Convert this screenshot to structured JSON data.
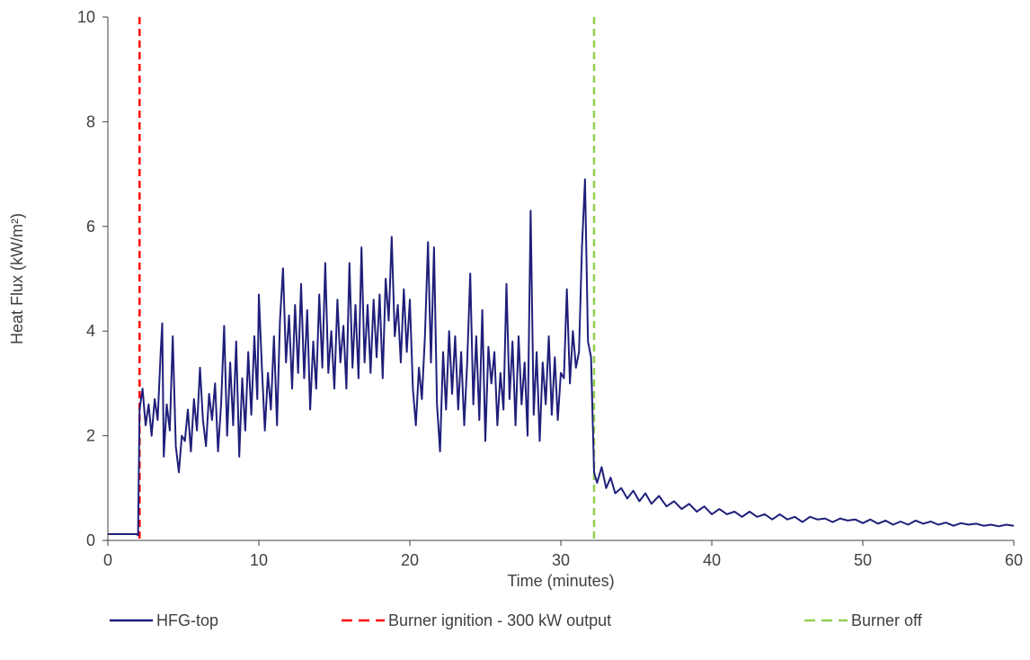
{
  "chart_data": {
    "type": "line",
    "xlabel": "Time (minutes)",
    "ylabel": "Heat Flux (kW/m²)",
    "xlim": [
      0,
      60
    ],
    "ylim": [
      0,
      10
    ],
    "xticks": [
      0,
      10,
      20,
      30,
      40,
      50,
      60
    ],
    "yticks": [
      0,
      2,
      4,
      6,
      8,
      10
    ],
    "grid": false,
    "legend_position": "bottom",
    "series": [
      {
        "name": "HFG-top",
        "color": "#1f1f7a",
        "style": "solid",
        "points": [
          [
            0,
            0.12
          ],
          [
            1.9,
            0.12
          ],
          [
            2.0,
            0.1
          ],
          [
            2.1,
            2.5
          ],
          [
            2.3,
            2.9
          ],
          [
            2.5,
            2.2
          ],
          [
            2.7,
            2.6
          ],
          [
            2.9,
            2.0
          ],
          [
            3.1,
            2.7
          ],
          [
            3.3,
            2.3
          ],
          [
            3.5,
            3.6
          ],
          [
            3.6,
            4.15
          ],
          [
            3.7,
            1.6
          ],
          [
            3.9,
            2.6
          ],
          [
            4.1,
            2.1
          ],
          [
            4.3,
            3.9
          ],
          [
            4.5,
            1.8
          ],
          [
            4.7,
            1.3
          ],
          [
            4.9,
            2.0
          ],
          [
            5.1,
            1.9
          ],
          [
            5.3,
            2.5
          ],
          [
            5.5,
            1.7
          ],
          [
            5.7,
            2.7
          ],
          [
            5.9,
            2.1
          ],
          [
            6.1,
            3.3
          ],
          [
            6.3,
            2.3
          ],
          [
            6.5,
            1.8
          ],
          [
            6.7,
            2.8
          ],
          [
            6.9,
            2.3
          ],
          [
            7.1,
            3.0
          ],
          [
            7.3,
            1.7
          ],
          [
            7.5,
            2.6
          ],
          [
            7.7,
            4.1
          ],
          [
            7.9,
            2.0
          ],
          [
            8.1,
            3.4
          ],
          [
            8.3,
            2.2
          ],
          [
            8.5,
            3.8
          ],
          [
            8.7,
            1.6
          ],
          [
            8.9,
            3.1
          ],
          [
            9.1,
            2.1
          ],
          [
            9.3,
            3.6
          ],
          [
            9.5,
            2.4
          ],
          [
            9.7,
            3.9
          ],
          [
            9.9,
            2.7
          ],
          [
            10.0,
            4.7
          ],
          [
            10.2,
            3.3
          ],
          [
            10.4,
            2.1
          ],
          [
            10.6,
            3.2
          ],
          [
            10.8,
            2.5
          ],
          [
            11.0,
            3.9
          ],
          [
            11.2,
            2.2
          ],
          [
            11.4,
            4.2
          ],
          [
            11.6,
            5.2
          ],
          [
            11.8,
            3.4
          ],
          [
            12.0,
            4.3
          ],
          [
            12.2,
            2.9
          ],
          [
            12.4,
            4.5
          ],
          [
            12.6,
            3.2
          ],
          [
            12.8,
            4.9
          ],
          [
            13.0,
            3.1
          ],
          [
            13.2,
            4.4
          ],
          [
            13.4,
            2.5
          ],
          [
            13.6,
            3.8
          ],
          [
            13.8,
            2.9
          ],
          [
            14.0,
            4.7
          ],
          [
            14.2,
            3.3
          ],
          [
            14.4,
            5.3
          ],
          [
            14.6,
            3.2
          ],
          [
            14.8,
            4.0
          ],
          [
            15.0,
            2.9
          ],
          [
            15.2,
            4.6
          ],
          [
            15.4,
            3.4
          ],
          [
            15.6,
            4.1
          ],
          [
            15.8,
            2.9
          ],
          [
            16.0,
            5.3
          ],
          [
            16.2,
            3.3
          ],
          [
            16.4,
            4.5
          ],
          [
            16.6,
            3.1
          ],
          [
            16.8,
            5.6
          ],
          [
            17.0,
            3.4
          ],
          [
            17.2,
            4.5
          ],
          [
            17.4,
            3.2
          ],
          [
            17.6,
            4.6
          ],
          [
            17.8,
            3.5
          ],
          [
            18.0,
            4.7
          ],
          [
            18.2,
            3.1
          ],
          [
            18.4,
            5.0
          ],
          [
            18.6,
            4.2
          ],
          [
            18.8,
            5.8
          ],
          [
            19.0,
            3.9
          ],
          [
            19.2,
            4.5
          ],
          [
            19.4,
            3.4
          ],
          [
            19.6,
            4.8
          ],
          [
            19.8,
            3.6
          ],
          [
            20.0,
            4.6
          ],
          [
            20.2,
            2.9
          ],
          [
            20.4,
            2.2
          ],
          [
            20.6,
            3.3
          ],
          [
            20.8,
            2.7
          ],
          [
            21.0,
            3.9
          ],
          [
            21.2,
            5.7
          ],
          [
            21.4,
            3.4
          ],
          [
            21.6,
            5.6
          ],
          [
            21.8,
            2.6
          ],
          [
            22.0,
            1.7
          ],
          [
            22.2,
            3.6
          ],
          [
            22.4,
            2.5
          ],
          [
            22.6,
            4.0
          ],
          [
            22.8,
            2.8
          ],
          [
            23.0,
            3.9
          ],
          [
            23.2,
            2.5
          ],
          [
            23.4,
            3.6
          ],
          [
            23.6,
            2.2
          ],
          [
            23.8,
            3.4
          ],
          [
            24.0,
            5.1
          ],
          [
            24.2,
            2.6
          ],
          [
            24.4,
            3.9
          ],
          [
            24.6,
            2.3
          ],
          [
            24.8,
            4.4
          ],
          [
            25.0,
            1.9
          ],
          [
            25.2,
            3.7
          ],
          [
            25.4,
            3.0
          ],
          [
            25.6,
            3.6
          ],
          [
            25.8,
            2.2
          ],
          [
            26.0,
            3.2
          ],
          [
            26.2,
            2.5
          ],
          [
            26.4,
            4.9
          ],
          [
            26.6,
            2.7
          ],
          [
            26.8,
            3.8
          ],
          [
            27.0,
            2.2
          ],
          [
            27.2,
            3.9
          ],
          [
            27.4,
            2.6
          ],
          [
            27.6,
            3.4
          ],
          [
            27.8,
            2.0
          ],
          [
            28.0,
            6.3
          ],
          [
            28.2,
            2.4
          ],
          [
            28.4,
            3.6
          ],
          [
            28.6,
            1.9
          ],
          [
            28.8,
            3.4
          ],
          [
            29.0,
            2.6
          ],
          [
            29.2,
            3.9
          ],
          [
            29.4,
            2.4
          ],
          [
            29.6,
            3.5
          ],
          [
            29.8,
            2.3
          ],
          [
            30.0,
            3.2
          ],
          [
            30.2,
            3.1
          ],
          [
            30.4,
            4.8
          ],
          [
            30.6,
            3.0
          ],
          [
            30.8,
            4.0
          ],
          [
            31.0,
            3.3
          ],
          [
            31.2,
            3.6
          ],
          [
            31.4,
            5.6
          ],
          [
            31.6,
            6.9
          ],
          [
            31.8,
            3.8
          ],
          [
            32.0,
            3.5
          ],
          [
            32.1,
            2.4
          ],
          [
            32.2,
            1.3
          ],
          [
            32.4,
            1.1
          ],
          [
            32.7,
            1.4
          ],
          [
            33.0,
            1.0
          ],
          [
            33.3,
            1.2
          ],
          [
            33.6,
            0.9
          ],
          [
            34.0,
            1.0
          ],
          [
            34.4,
            0.8
          ],
          [
            34.8,
            0.95
          ],
          [
            35.2,
            0.75
          ],
          [
            35.6,
            0.9
          ],
          [
            36.0,
            0.7
          ],
          [
            36.5,
            0.85
          ],
          [
            37.0,
            0.65
          ],
          [
            37.5,
            0.75
          ],
          [
            38.0,
            0.6
          ],
          [
            38.5,
            0.7
          ],
          [
            39.0,
            0.55
          ],
          [
            39.5,
            0.65
          ],
          [
            40.0,
            0.5
          ],
          [
            40.5,
            0.6
          ],
          [
            41.0,
            0.5
          ],
          [
            41.5,
            0.55
          ],
          [
            42.0,
            0.45
          ],
          [
            42.5,
            0.55
          ],
          [
            43.0,
            0.45
          ],
          [
            43.5,
            0.5
          ],
          [
            44.0,
            0.4
          ],
          [
            44.5,
            0.5
          ],
          [
            45.0,
            0.4
          ],
          [
            45.5,
            0.45
          ],
          [
            46.0,
            0.35
          ],
          [
            46.5,
            0.45
          ],
          [
            47.0,
            0.4
          ],
          [
            47.5,
            0.42
          ],
          [
            48.0,
            0.35
          ],
          [
            48.5,
            0.42
          ],
          [
            49.0,
            0.38
          ],
          [
            49.5,
            0.4
          ],
          [
            50.0,
            0.33
          ],
          [
            50.5,
            0.4
          ],
          [
            51.0,
            0.32
          ],
          [
            51.5,
            0.38
          ],
          [
            52.0,
            0.3
          ],
          [
            52.5,
            0.36
          ],
          [
            53.0,
            0.3
          ],
          [
            53.5,
            0.38
          ],
          [
            54.0,
            0.32
          ],
          [
            54.5,
            0.36
          ],
          [
            55.0,
            0.3
          ],
          [
            55.5,
            0.34
          ],
          [
            56.0,
            0.28
          ],
          [
            56.5,
            0.33
          ],
          [
            57.0,
            0.3
          ],
          [
            57.5,
            0.32
          ],
          [
            58.0,
            0.28
          ],
          [
            58.5,
            0.3
          ],
          [
            59.0,
            0.27
          ],
          [
            59.5,
            0.3
          ],
          [
            60.0,
            0.28
          ]
        ]
      },
      {
        "name": "Burner ignition - 300 kW output",
        "color": "#ff0000",
        "style": "dashed",
        "vline_x": 2.1
      },
      {
        "name": "Burner off",
        "color": "#92d050",
        "style": "dashed",
        "vline_x": 32.2
      }
    ]
  }
}
